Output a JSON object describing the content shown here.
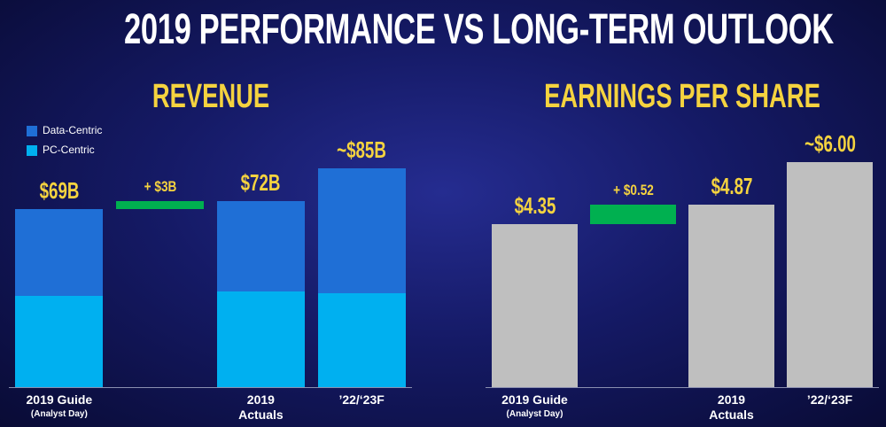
{
  "title": "2019 PERFORMANCE VS LONG-TERM OUTLOOK",
  "chart_data": [
    {
      "type": "bar",
      "stacked": true,
      "title": "REVENUE",
      "categories": [
        "2019 Guide",
        null,
        "2019 Actuals",
        "’22/‘23F"
      ],
      "category_notes": [
        "(Analyst Day)",
        null,
        null,
        null
      ],
      "series": [
        {
          "name": "PC-Centric",
          "color": "#00b0f0",
          "values": [
            35.5,
            null,
            37,
            36.5
          ]
        },
        {
          "name": "Data-Centric",
          "color": "#1f6fd6",
          "values": [
            33.5,
            null,
            35,
            48.5
          ]
        }
      ],
      "totals": {
        "values": [
          69,
          null,
          72,
          85
        ],
        "value_labels": [
          "$69B",
          null,
          "$72B",
          "~$85B"
        ]
      },
      "change": {
        "values": [
          null,
          3,
          null,
          null
        ],
        "value_labels": [
          null,
          "+ $3B",
          null,
          null
        ],
        "color": "#00b050"
      },
      "ylim": [
        0,
        100
      ],
      "legend": "upper left"
    },
    {
      "type": "bar",
      "title": "EARNINGS PER SHARE",
      "categories": [
        "2019 Guide",
        null,
        "2019 Actuals",
        "’22/‘23F"
      ],
      "category_notes": [
        "(Analyst Day)",
        null,
        null,
        null
      ],
      "values": [
        4.35,
        null,
        4.87,
        6.0
      ],
      "value_labels": [
        "$4.35",
        null,
        "$4.87",
        "~$6.00"
      ],
      "color": "#bfbfbf",
      "change": {
        "values": [
          null,
          0.52,
          null,
          null
        ],
        "value_labels": [
          null,
          "+ $0.52",
          null,
          null
        ],
        "color": "#00b050"
      },
      "ylim": [
        0,
        7.5
      ]
    }
  ]
}
